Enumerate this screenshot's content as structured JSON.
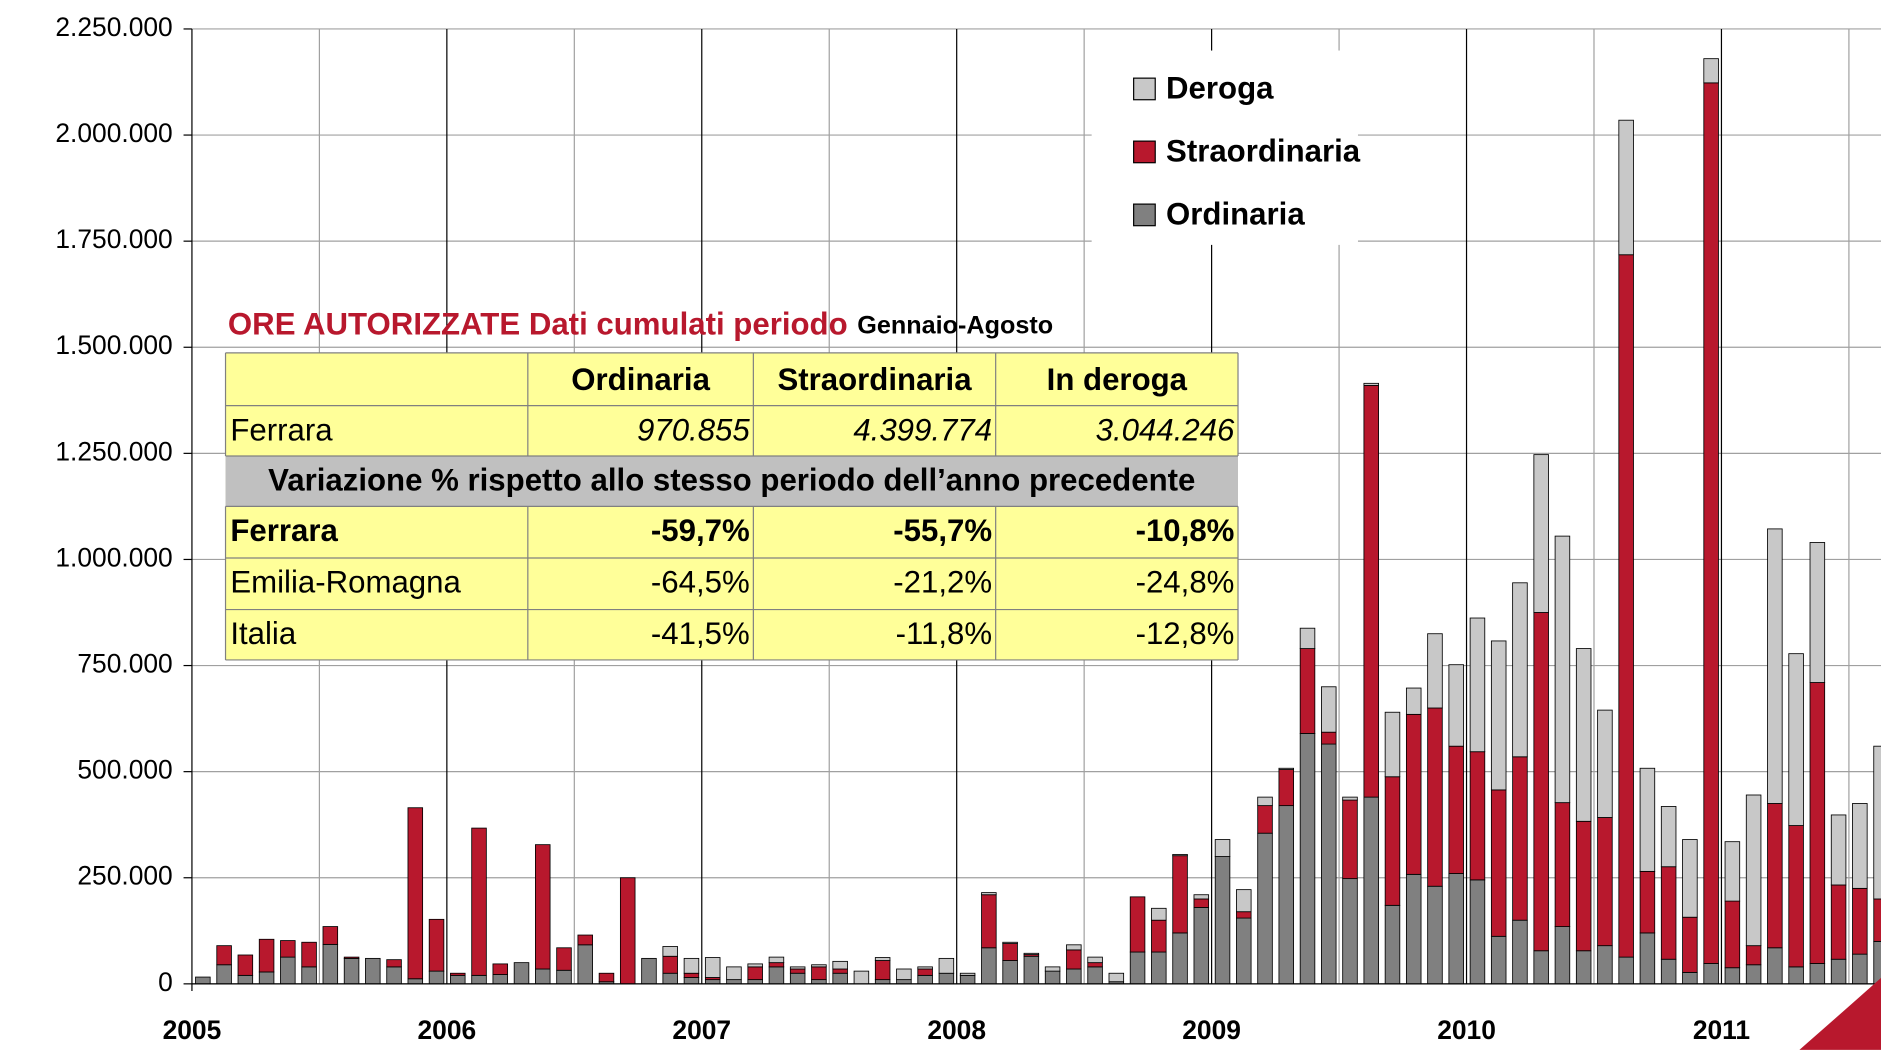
{
  "chart_data": {
    "type": "bar",
    "stacked": true,
    "categories": [
      "2005",
      null,
      null,
      null,
      null,
      null,
      null,
      null,
      null,
      null,
      null,
      null,
      "2006",
      null,
      null,
      null,
      null,
      null,
      null,
      null,
      null,
      null,
      null,
      null,
      "2007",
      null,
      null,
      null,
      null,
      null,
      null,
      null,
      null,
      null,
      null,
      null,
      "2008",
      null,
      null,
      null,
      null,
      null,
      null,
      null,
      null,
      null,
      null,
      null,
      "2009",
      null,
      null,
      null,
      null,
      null,
      null,
      null,
      null,
      null,
      null,
      null,
      "2010",
      null,
      null,
      null,
      null,
      null,
      null,
      null,
      null,
      null,
      null,
      null,
      "2011",
      null,
      null,
      null,
      null,
      null,
      null,
      null
    ],
    "series": [
      {
        "name": "Ordinaria",
        "color": "#808080",
        "values": [
          16000,
          45000,
          20000,
          28000,
          63000,
          40000,
          93000,
          60000,
          60000,
          40000,
          12000,
          30000,
          20000,
          20000,
          22000,
          50000,
          35000,
          32000,
          92000,
          5000,
          0,
          60000,
          25000,
          15000,
          10000,
          10000,
          10000,
          40000,
          25000,
          10000,
          25000,
          0,
          10000,
          10000,
          20000,
          25000,
          20000,
          85000,
          55000,
          65000,
          30000,
          35000,
          40000,
          5000,
          75000,
          75000,
          120000,
          180000,
          300000,
          155000,
          355000,
          420000,
          590000,
          565000,
          248000,
          440000,
          185000,
          258000,
          230000,
          260000,
          245000,
          112000,
          150000,
          78000,
          135000,
          78000,
          90000,
          63000,
          120000,
          58000,
          27000,
          48000,
          38000,
          45000,
          85000,
          40000,
          48000,
          58000,
          70000,
          100000
        ]
      },
      {
        "name": "Straordinaria",
        "color": "#b8182d",
        "values": [
          0,
          45000,
          48000,
          77000,
          39000,
          58000,
          42000,
          3000,
          0,
          17000,
          403000,
          122000,
          5000,
          347000,
          25000,
          0,
          293000,
          53000,
          23000,
          20000,
          250000,
          0,
          40000,
          10000,
          5000,
          0,
          30000,
          10000,
          10000,
          30000,
          10000,
          0,
          45000,
          0,
          15000,
          0,
          0,
          125000,
          40000,
          4000,
          0,
          45000,
          10000,
          0,
          130000,
          75000,
          182000,
          20000,
          0,
          15000,
          65000,
          85000,
          200000,
          28000,
          185000,
          970000,
          303000,
          377000,
          420000,
          300000,
          302000,
          345000,
          385000,
          797000,
          292000,
          305000,
          302000,
          1655000,
          145000,
          218000,
          130000,
          2075000,
          157000,
          45000,
          340000,
          333000,
          662000,
          175000,
          155000,
          100000
        ]
      },
      {
        "name": "Deroga",
        "color": "#c8c8c8",
        "values": [
          0,
          0,
          0,
          0,
          0,
          0,
          0,
          0,
          0,
          0,
          0,
          0,
          0,
          0,
          0,
          0,
          0,
          0,
          0,
          0,
          0,
          0,
          23000,
          35000,
          47000,
          30000,
          7000,
          13000,
          5000,
          5000,
          18000,
          30000,
          7000,
          25000,
          5000,
          35000,
          5000,
          5000,
          3000,
          3000,
          10000,
          12000,
          13000,
          20000,
          0,
          28000,
          3000,
          10000,
          40000,
          52000,
          20000,
          3000,
          48000,
          107000,
          7000,
          5000,
          152000,
          62000,
          175000,
          192000,
          315000,
          351000,
          410000,
          372000,
          628000,
          407000,
          253000,
          317000,
          243000,
          142000,
          183000,
          57000,
          140000,
          355000,
          647000,
          405000,
          330000,
          165000,
          200000,
          360000
        ]
      }
    ],
    "ylim": [
      0,
      2250000
    ],
    "yticks": [
      0,
      {
        "value": 250000,
        "label": "250.000"
      },
      {
        "value": 500000,
        "label": "500.000"
      },
      {
        "value": 750000,
        "label": "750.000"
      },
      {
        "value": 1000000,
        "label": "1.000.000"
      },
      {
        "value": 1250000,
        "label": "1.250.000"
      },
      {
        "value": 1500000,
        "label": "1.500.000"
      },
      {
        "value": 1750000,
        "label": "1.750.000"
      },
      {
        "value": 2000000,
        "label": "2.000.000"
      },
      {
        "value": 2250000,
        "label": "2.250.000"
      }
    ],
    "grid": true,
    "legend": "top-right"
  },
  "table": {
    "title": "ORE AUTORIZZATE Dati cumulati periodo",
    "title_suffix": "Gennaio-Agosto",
    "header": [
      "Ordinaria",
      "Straordinaria",
      "In deroga"
    ],
    "rows": [
      [
        "Ferrara",
        "970.855",
        "4.399.774",
        "3.044.246"
      ]
    ],
    "subheading": "Variazione  % rispetto allo stesso periodo dell’anno precedente",
    "variation_rows": [
      [
        "Ferrara",
        "-59,7%",
        "-55,7%",
        "-10,8%"
      ],
      [
        "Emilia-Romagna",
        "-64,5%",
        "-21,2%",
        "-24,8%"
      ],
      [
        "Italia",
        "-41,5%",
        "-11,8%",
        "-12,8%"
      ]
    ]
  }
}
